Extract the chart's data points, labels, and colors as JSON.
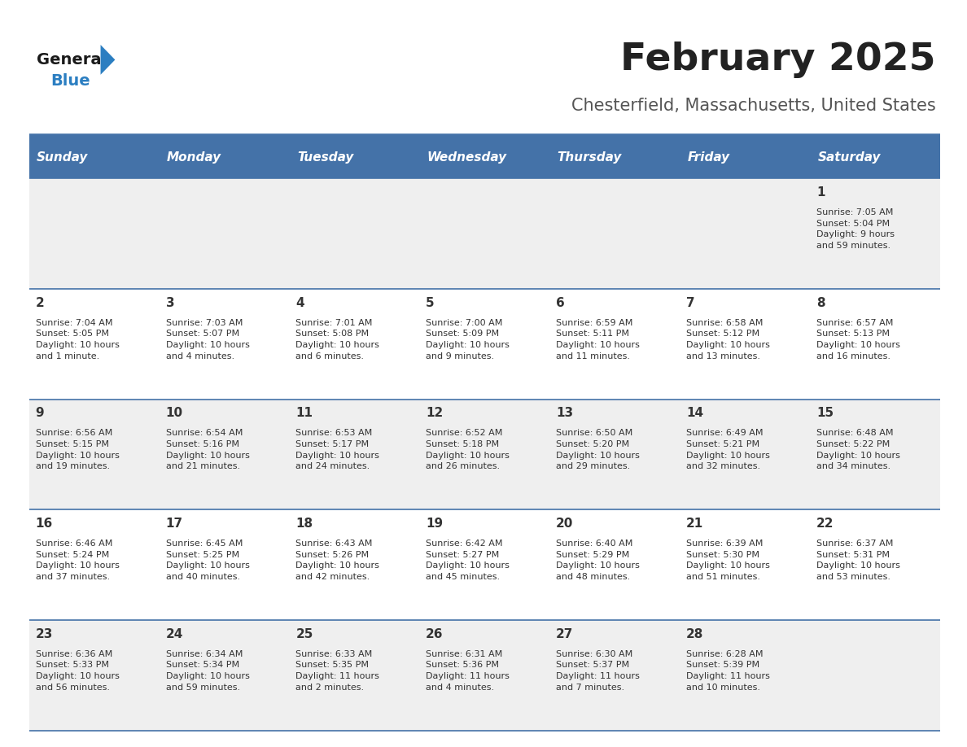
{
  "title": "February 2025",
  "subtitle": "Chesterfield, Massachusetts, United States",
  "header_bg": "#4472A8",
  "header_text_color": "#FFFFFF",
  "day_names": [
    "Sunday",
    "Monday",
    "Tuesday",
    "Wednesday",
    "Thursday",
    "Friday",
    "Saturday"
  ],
  "title_color": "#222222",
  "subtitle_color": "#555555",
  "cell_bg_even": "#EFEFEF",
  "cell_bg_odd": "#FFFFFF",
  "separator_color": "#4472A8",
  "day_num_color": "#333333",
  "info_text_color": "#333333",
  "logo_general_color": "#1a1a1a",
  "logo_blue_color": "#2B7EC1",
  "calendar_data": [
    [
      {
        "day": null,
        "sunrise": null,
        "sunset": null,
        "daylight": null
      },
      {
        "day": null,
        "sunrise": null,
        "sunset": null,
        "daylight": null
      },
      {
        "day": null,
        "sunrise": null,
        "sunset": null,
        "daylight": null
      },
      {
        "day": null,
        "sunrise": null,
        "sunset": null,
        "daylight": null
      },
      {
        "day": null,
        "sunrise": null,
        "sunset": null,
        "daylight": null
      },
      {
        "day": null,
        "sunrise": null,
        "sunset": null,
        "daylight": null
      },
      {
        "day": 1,
        "sunrise": "7:05 AM",
        "sunset": "5:04 PM",
        "daylight": "9 hours\nand 59 minutes."
      }
    ],
    [
      {
        "day": 2,
        "sunrise": "7:04 AM",
        "sunset": "5:05 PM",
        "daylight": "10 hours\nand 1 minute."
      },
      {
        "day": 3,
        "sunrise": "7:03 AM",
        "sunset": "5:07 PM",
        "daylight": "10 hours\nand 4 minutes."
      },
      {
        "day": 4,
        "sunrise": "7:01 AM",
        "sunset": "5:08 PM",
        "daylight": "10 hours\nand 6 minutes."
      },
      {
        "day": 5,
        "sunrise": "7:00 AM",
        "sunset": "5:09 PM",
        "daylight": "10 hours\nand 9 minutes."
      },
      {
        "day": 6,
        "sunrise": "6:59 AM",
        "sunset": "5:11 PM",
        "daylight": "10 hours\nand 11 minutes."
      },
      {
        "day": 7,
        "sunrise": "6:58 AM",
        "sunset": "5:12 PM",
        "daylight": "10 hours\nand 13 minutes."
      },
      {
        "day": 8,
        "sunrise": "6:57 AM",
        "sunset": "5:13 PM",
        "daylight": "10 hours\nand 16 minutes."
      }
    ],
    [
      {
        "day": 9,
        "sunrise": "6:56 AM",
        "sunset": "5:15 PM",
        "daylight": "10 hours\nand 19 minutes."
      },
      {
        "day": 10,
        "sunrise": "6:54 AM",
        "sunset": "5:16 PM",
        "daylight": "10 hours\nand 21 minutes."
      },
      {
        "day": 11,
        "sunrise": "6:53 AM",
        "sunset": "5:17 PM",
        "daylight": "10 hours\nand 24 minutes."
      },
      {
        "day": 12,
        "sunrise": "6:52 AM",
        "sunset": "5:18 PM",
        "daylight": "10 hours\nand 26 minutes."
      },
      {
        "day": 13,
        "sunrise": "6:50 AM",
        "sunset": "5:20 PM",
        "daylight": "10 hours\nand 29 minutes."
      },
      {
        "day": 14,
        "sunrise": "6:49 AM",
        "sunset": "5:21 PM",
        "daylight": "10 hours\nand 32 minutes."
      },
      {
        "day": 15,
        "sunrise": "6:48 AM",
        "sunset": "5:22 PM",
        "daylight": "10 hours\nand 34 minutes."
      }
    ],
    [
      {
        "day": 16,
        "sunrise": "6:46 AM",
        "sunset": "5:24 PM",
        "daylight": "10 hours\nand 37 minutes."
      },
      {
        "day": 17,
        "sunrise": "6:45 AM",
        "sunset": "5:25 PM",
        "daylight": "10 hours\nand 40 minutes."
      },
      {
        "day": 18,
        "sunrise": "6:43 AM",
        "sunset": "5:26 PM",
        "daylight": "10 hours\nand 42 minutes."
      },
      {
        "day": 19,
        "sunrise": "6:42 AM",
        "sunset": "5:27 PM",
        "daylight": "10 hours\nand 45 minutes."
      },
      {
        "day": 20,
        "sunrise": "6:40 AM",
        "sunset": "5:29 PM",
        "daylight": "10 hours\nand 48 minutes."
      },
      {
        "day": 21,
        "sunrise": "6:39 AM",
        "sunset": "5:30 PM",
        "daylight": "10 hours\nand 51 minutes."
      },
      {
        "day": 22,
        "sunrise": "6:37 AM",
        "sunset": "5:31 PM",
        "daylight": "10 hours\nand 53 minutes."
      }
    ],
    [
      {
        "day": 23,
        "sunrise": "6:36 AM",
        "sunset": "5:33 PM",
        "daylight": "10 hours\nand 56 minutes."
      },
      {
        "day": 24,
        "sunrise": "6:34 AM",
        "sunset": "5:34 PM",
        "daylight": "10 hours\nand 59 minutes."
      },
      {
        "day": 25,
        "sunrise": "6:33 AM",
        "sunset": "5:35 PM",
        "daylight": "11 hours\nand 2 minutes."
      },
      {
        "day": 26,
        "sunrise": "6:31 AM",
        "sunset": "5:36 PM",
        "daylight": "11 hours\nand 4 minutes."
      },
      {
        "day": 27,
        "sunrise": "6:30 AM",
        "sunset": "5:37 PM",
        "daylight": "11 hours\nand 7 minutes."
      },
      {
        "day": 28,
        "sunrise": "6:28 AM",
        "sunset": "5:39 PM",
        "daylight": "11 hours\nand 10 minutes."
      },
      {
        "day": null,
        "sunrise": null,
        "sunset": null,
        "daylight": null
      }
    ]
  ]
}
